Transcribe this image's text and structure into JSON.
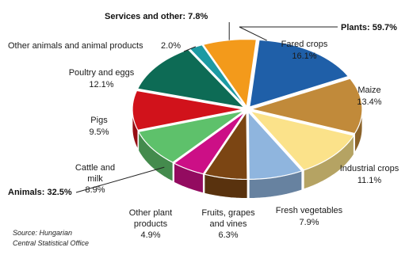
{
  "chart_data": {
    "type": "pie",
    "style": "3d-exploded",
    "groups": [
      {
        "id": "plants",
        "label": "Plants: 59.7%"
      },
      {
        "id": "animals",
        "label": "Animals: 32.5%"
      },
      {
        "id": "services",
        "label": "Services and other: 7.8%"
      }
    ],
    "slices": [
      {
        "id": "fared-crops",
        "label": "Fared crops",
        "value": 16.1,
        "value_label": "16.1%",
        "group": "plants",
        "color": "#1f5fa8"
      },
      {
        "id": "maize",
        "label": "Maize",
        "value": 13.4,
        "value_label": "13.4%",
        "group": "plants",
        "color": "#c18a3a"
      },
      {
        "id": "industrial-crops",
        "label": "Industrial crops",
        "value": 11.1,
        "value_label": "11.1%",
        "group": "plants",
        "color": "#fbe28a"
      },
      {
        "id": "fresh-vegetables",
        "label": "Fresh vegetables",
        "value": 7.9,
        "value_label": "7.9%",
        "group": "plants",
        "color": "#8fb5de"
      },
      {
        "id": "fruits-grapes-vines",
        "label": "Fruits, grapes and vines",
        "value": 6.3,
        "value_label": "6.3%",
        "group": "plants",
        "color": "#7b4513"
      },
      {
        "id": "other-plant-products",
        "label": "Other plant products",
        "value": 4.9,
        "value_label": "4.9%",
        "group": "plants",
        "color": "#cc0f86"
      },
      {
        "id": "cattle-and-milk",
        "label": "Cattle and milk",
        "value": 8.9,
        "value_label": "8.9%",
        "group": "animals",
        "color": "#5ec16b"
      },
      {
        "id": "pigs",
        "label": "Pigs",
        "value": 9.5,
        "value_label": "9.5%",
        "group": "animals",
        "color": "#d1121b"
      },
      {
        "id": "poultry-and-eggs",
        "label": "Poultry and eggs",
        "value": 12.1,
        "value_label": "12.1%",
        "group": "animals",
        "color": "#0d6b55"
      },
      {
        "id": "other-animals",
        "label": "Other animals and animal products",
        "value": 2.0,
        "value_label": "2.0%",
        "group": "animals",
        "color": "#1d9aa3"
      },
      {
        "id": "services-other",
        "label": "Services and other",
        "value": 7.8,
        "value_label": "7.8%",
        "group": "services",
        "color": "#f39a1b"
      }
    ],
    "source": [
      "Source: Hungarian",
      "Central Statistical Office"
    ]
  }
}
